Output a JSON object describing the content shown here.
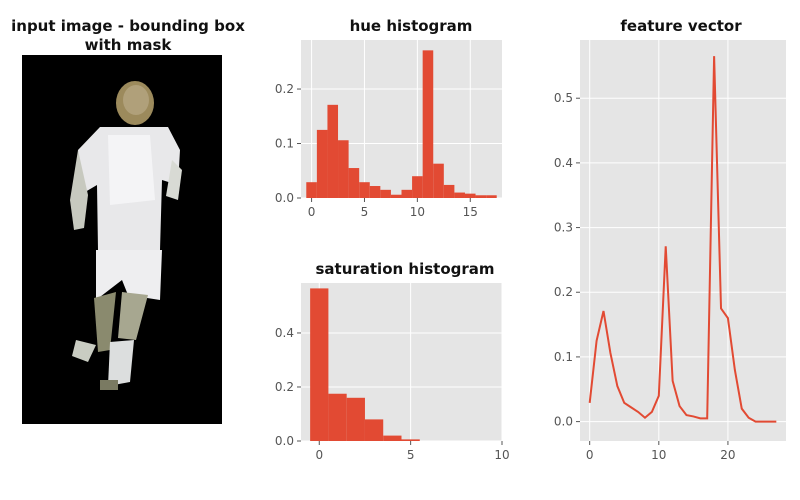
{
  "image_panel": {
    "title_line1": "input image - bounding box",
    "title_line2": "with mask"
  },
  "colors": {
    "series": "#E24A33",
    "axes_bg": "#E5E5E5",
    "grid": "#FFFFFF",
    "tick_text": "#555555"
  },
  "chart_data": [
    {
      "type": "bar",
      "title": "hue histogram",
      "x": [
        0,
        1,
        2,
        3,
        4,
        5,
        6,
        7,
        8,
        9,
        10,
        11,
        12,
        13,
        14,
        15,
        16,
        17
      ],
      "values": [
        0.029,
        0.125,
        0.171,
        0.106,
        0.055,
        0.029,
        0.022,
        0.015,
        0.006,
        0.015,
        0.04,
        0.271,
        0.063,
        0.024,
        0.01,
        0.008,
        0.005,
        0.005
      ],
      "xlim": [
        -1,
        18
      ],
      "ylim": [
        0,
        0.29
      ],
      "xticks": [
        0,
        5,
        10,
        15
      ],
      "yticks": [
        0.0,
        0.1,
        0.2
      ],
      "xtick_labels": [
        "0",
        "5",
        "10",
        "15"
      ],
      "ytick_labels": [
        "0.0",
        "0.1",
        "0.2"
      ],
      "grid": true
    },
    {
      "type": "bar",
      "title": "saturation histogram",
      "x": [
        0,
        1,
        2,
        3,
        4,
        5
      ],
      "values": [
        0.565,
        0.175,
        0.16,
        0.08,
        0.02,
        0.006
      ],
      "xlim": [
        -1,
        10
      ],
      "ylim": [
        0,
        0.585
      ],
      "xticks": [
        0,
        5,
        10
      ],
      "yticks": [
        0.0,
        0.2,
        0.4
      ],
      "xtick_labels": [
        "0",
        "5",
        "10"
      ],
      "ytick_labels": [
        "0.0",
        "0.2",
        "0.4"
      ],
      "grid": true
    },
    {
      "type": "line",
      "title": "feature vector",
      "x": [
        0,
        1,
        2,
        3,
        4,
        5,
        6,
        7,
        8,
        9,
        10,
        11,
        12,
        13,
        14,
        15,
        16,
        17,
        18,
        19,
        20,
        21,
        22,
        23,
        24,
        25,
        26,
        27
      ],
      "values": [
        0.029,
        0.125,
        0.171,
        0.106,
        0.055,
        0.029,
        0.022,
        0.015,
        0.006,
        0.015,
        0.04,
        0.271,
        0.063,
        0.024,
        0.01,
        0.008,
        0.005,
        0.005,
        0.565,
        0.175,
        0.16,
        0.08,
        0.02,
        0.006,
        0.0,
        0.0,
        0.0,
        0.0
      ],
      "xlim": [
        -1.4,
        28.4
      ],
      "ylim": [
        -0.03,
        0.59
      ],
      "xticks": [
        0,
        10,
        20
      ],
      "yticks": [
        0.0,
        0.1,
        0.2,
        0.3,
        0.4,
        0.5
      ],
      "xtick_labels": [
        "0",
        "10",
        "20"
      ],
      "ytick_labels": [
        "0.0",
        "0.1",
        "0.2",
        "0.3",
        "0.4",
        "0.5"
      ],
      "grid": true
    }
  ]
}
